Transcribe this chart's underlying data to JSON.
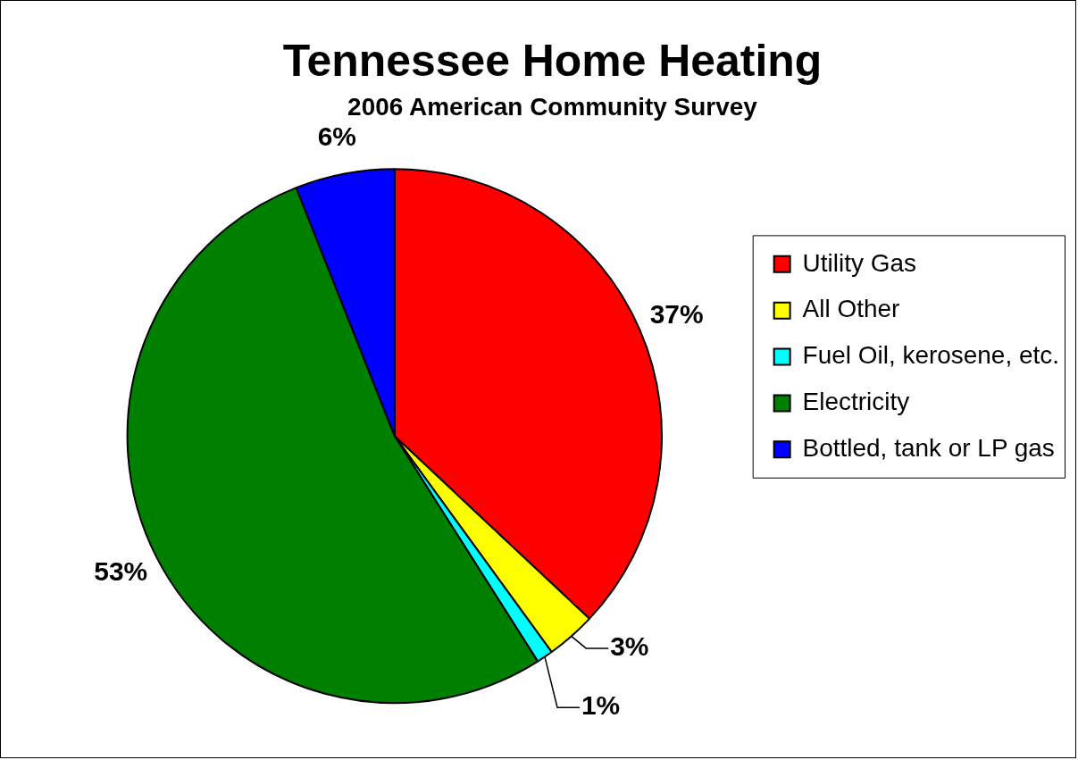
{
  "chart_data": {
    "type": "pie",
    "title": "Tennessee Home Heating",
    "subtitle": "2006 American Community Survey",
    "categories": [
      "Utility Gas",
      "All Other",
      "Fuel Oil, kerosene, etc.",
      "Electricity",
      "Bottled, tank or LP gas"
    ],
    "values": [
      37,
      3,
      1,
      53,
      6
    ],
    "colors": [
      "#ff0000",
      "#ffff00",
      "#00ffff",
      "#008000",
      "#0000ff"
    ],
    "value_labels": [
      "37%",
      "3%",
      "1%",
      "53%",
      "6%"
    ],
    "legend": "right"
  }
}
